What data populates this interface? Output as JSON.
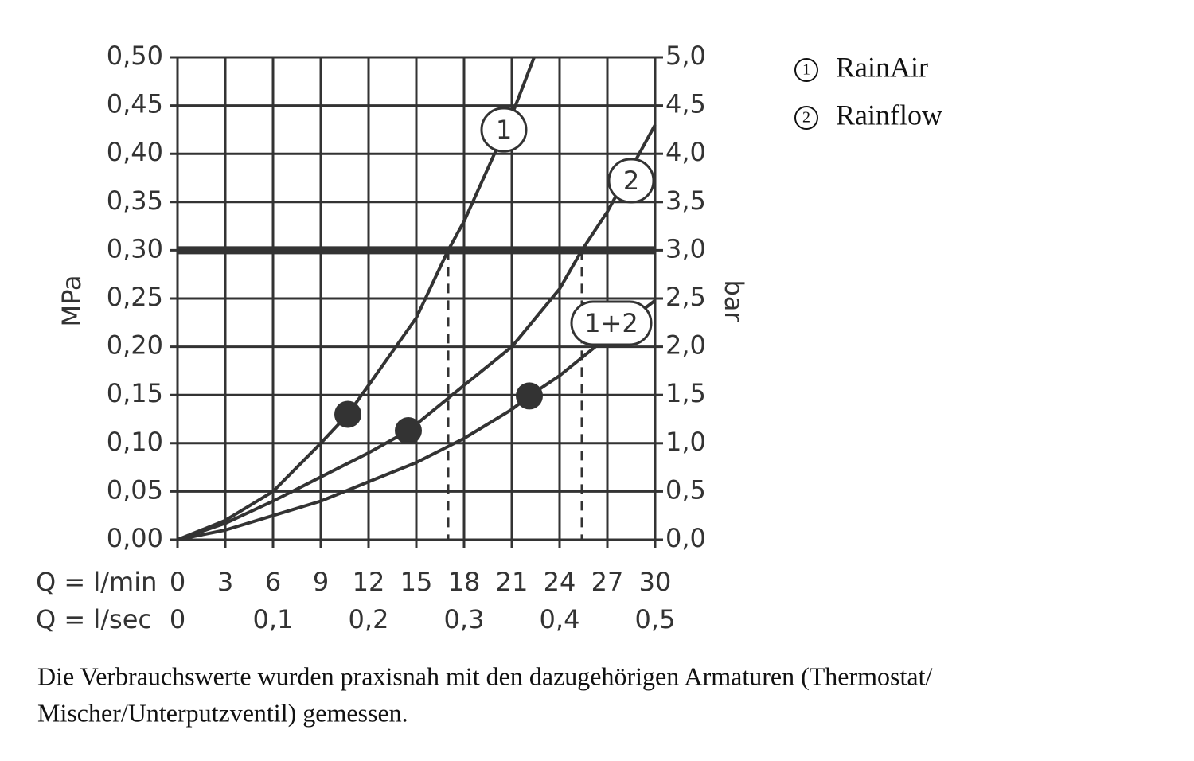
{
  "chart_data": {
    "type": "line",
    "xlabel": "Q = l/min",
    "x2label": "Q = l/sec",
    "ylabel": "MPa",
    "y2label": "bar",
    "xlim": [
      0,
      30
    ],
    "xticks": [
      0,
      3,
      6,
      9,
      12,
      15,
      18,
      21,
      24,
      27,
      30
    ],
    "x2lim": [
      0,
      0.5
    ],
    "x2ticks": [
      0,
      {
        "value": 0.1,
        "label": "0,1"
      },
      {
        "value": 0.2,
        "label": "0,2"
      },
      {
        "value": 0.3,
        "label": "0,3"
      },
      {
        "value": 0.4,
        "label": "0,4"
      },
      {
        "value": 0.5,
        "label": "0,5"
      }
    ],
    "ylim": [
      0,
      0.5
    ],
    "yticks": [
      {
        "value": 0,
        "label": "0,00"
      },
      {
        "value": 0.05,
        "label": "0,05"
      },
      {
        "value": 0.1,
        "label": "0,10"
      },
      {
        "value": 0.15,
        "label": "0,15"
      },
      {
        "value": 0.2,
        "label": "0,20"
      },
      {
        "value": 0.25,
        "label": "0,25"
      },
      {
        "value": 0.3,
        "label": "0,30"
      },
      {
        "value": 0.35,
        "label": "0,35"
      },
      {
        "value": 0.4,
        "label": "0,40"
      },
      {
        "value": 0.45,
        "label": "0,45"
      },
      {
        "value": 0.5,
        "label": "0,50"
      }
    ],
    "y2lim": [
      0,
      5
    ],
    "y2ticks": [
      {
        "value": 0,
        "label": "0,0"
      },
      {
        "value": 0.5,
        "label": "0,5"
      },
      {
        "value": 1,
        "label": "1,0"
      },
      {
        "value": 1.5,
        "label": "1,5"
      },
      {
        "value": 2,
        "label": "2,0"
      },
      {
        "value": 2.5,
        "label": "2,5"
      },
      {
        "value": 3,
        "label": "3,0"
      },
      {
        "value": 3.5,
        "label": "3,5"
      },
      {
        "value": 4,
        "label": "4,0"
      },
      {
        "value": 4.5,
        "label": "4,5"
      },
      {
        "value": 5,
        "label": "5,0"
      }
    ],
    "grid": true,
    "reference_line": 0.3,
    "drop_lines": [
      17,
      25.4
    ],
    "series": [
      {
        "name": "RainAir",
        "label": "1",
        "color": "#333333",
        "x": [
          0,
          3,
          6,
          9,
          10.7,
          12,
          15,
          17,
          18,
          21,
          22.4
        ],
        "values": [
          0,
          0.02,
          0.05,
          0.1,
          0.13,
          0.16,
          0.23,
          0.3,
          0.33,
          0.44,
          0.5
        ],
        "marker_x": 10.7,
        "marker_y": 0.13
      },
      {
        "name": "Rainflow",
        "label": "2",
        "color": "#333333",
        "x": [
          0,
          3,
          6,
          9,
          12,
          14.5,
          18,
          21,
          24,
          25.4,
          27,
          30
        ],
        "values": [
          0,
          0.017,
          0.04,
          0.065,
          0.09,
          0.113,
          0.16,
          0.2,
          0.26,
          0.3,
          0.34,
          0.43
        ],
        "marker_x": 14.5,
        "marker_y": 0.113
      },
      {
        "label": "1+2",
        "color": "#333333",
        "x": [
          0,
          3,
          6,
          9,
          12,
          15,
          18,
          21,
          22.1,
          24,
          27,
          30
        ],
        "values": [
          0,
          0.01,
          0.025,
          0.04,
          0.06,
          0.08,
          0.105,
          0.135,
          0.149,
          0.17,
          0.21,
          0.248
        ],
        "marker_x": 22.1,
        "marker_y": 0.149
      }
    ],
    "caption": [
      "Die Verbrauchswerte wurden praxisnah mit den dazugehörigen Armaturen (Thermostat/",
      "Mischer/Unterputzventil) gemessen."
    ]
  }
}
